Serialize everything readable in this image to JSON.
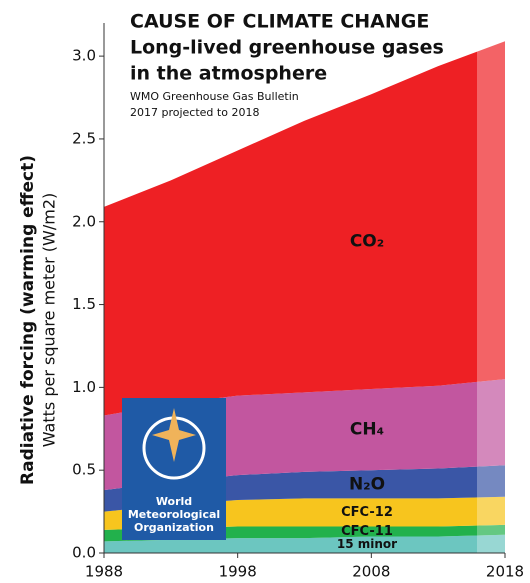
{
  "chart_data": {
    "type": "area",
    "stacked": true,
    "title": "CAUSE OF CLIMATE CHANGE",
    "subtitle": [
      "Long-lived greenhouse gases",
      "in the atmosphere"
    ],
    "notes": [
      "WMO Greenhouse Gas Bulletin",
      "2017 projected to 2018"
    ],
    "y_label": [
      "Radiative forcing (warming effect)",
      "Watts per square meter (W/m2)"
    ],
    "logo_text": [
      "World",
      "Meteorological",
      "Organization"
    ],
    "x": [
      1988,
      1993,
      1998,
      2003,
      2008,
      2013,
      2018
    ],
    "xlim": [
      1988,
      2018
    ],
    "xticks": [
      1988,
      1998,
      2008,
      2018
    ],
    "ylim": [
      0,
      3.2
    ],
    "yticks": [
      {
        "value": 0,
        "label": "0.0"
      },
      0.5,
      {
        "value": 1,
        "label": "1.0"
      },
      1.5,
      {
        "value": 2,
        "label": "2.0"
      },
      2.5,
      {
        "value": 3,
        "label": "3.0"
      }
    ],
    "series": [
      {
        "name": "15 minor",
        "color": "#6cc6c0",
        "values": [
          0.07,
          0.08,
          0.09,
          0.09,
          0.1,
          0.1,
          0.11
        ]
      },
      {
        "name": "CFC-11",
        "color": "#22b14c",
        "values": [
          0.07,
          0.07,
          0.07,
          0.07,
          0.06,
          0.06,
          0.06
        ]
      },
      {
        "name": "CFC-12",
        "color": "#f7c51e",
        "values": [
          0.11,
          0.14,
          0.16,
          0.17,
          0.17,
          0.17,
          0.17
        ]
      },
      {
        "name": "N₂O",
        "color": "#3a56a6",
        "values": [
          0.13,
          0.14,
          0.15,
          0.16,
          0.17,
          0.18,
          0.19
        ]
      },
      {
        "name": "CH₄",
        "color": "#c2569f",
        "values": [
          0.45,
          0.47,
          0.48,
          0.48,
          0.49,
          0.5,
          0.52
        ]
      },
      {
        "name": "CO₂",
        "color": "#ee2024",
        "values": [
          1.26,
          1.35,
          1.48,
          1.64,
          1.78,
          1.93,
          2.04
        ]
      }
    ]
  }
}
